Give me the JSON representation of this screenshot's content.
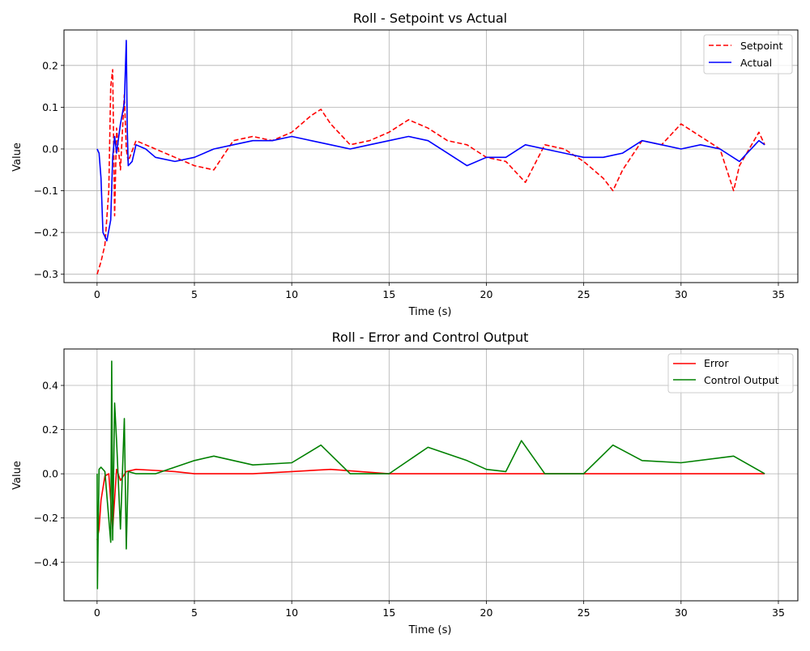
{
  "chart_data": [
    {
      "type": "line",
      "title": "Roll - Setpoint vs Actual",
      "xlabel": "Time (s)",
      "ylabel": "Value",
      "xlim": [
        -1.7,
        36.0
      ],
      "ylim": [
        -0.32,
        0.285
      ],
      "xticks": [
        0,
        5,
        10,
        15,
        20,
        25,
        30,
        35
      ],
      "yticks": [
        -0.3,
        -0.2,
        -0.1,
        0.0,
        0.1,
        0.2
      ],
      "ytick_labels": [
        "−0.3",
        "−0.2",
        "−0.1",
        "0.0",
        "0.1",
        "0.2"
      ],
      "grid": true,
      "legend_position": "top-right",
      "series": [
        {
          "name": "Setpoint",
          "color": "#ff0000",
          "style": "dashed",
          "x": [
            0,
            0.2,
            0.4,
            0.6,
            0.7,
            0.8,
            0.9,
            1.0,
            1.2,
            1.4,
            1.5,
            1.6,
            2.0,
            3.0,
            4.0,
            5.0,
            6.0,
            7.0,
            8.0,
            9.0,
            10.0,
            11.0,
            11.5,
            12.0,
            13.0,
            14.0,
            15.0,
            16.0,
            17.0,
            18.0,
            19.0,
            20.0,
            21.0,
            22.0,
            23.0,
            24.0,
            25.0,
            26.0,
            26.5,
            27.0,
            28.0,
            29.0,
            30.0,
            31.0,
            32.0,
            32.7,
            33.0,
            34.0,
            34.3
          ],
          "values": [
            -0.3,
            -0.27,
            -0.23,
            -0.1,
            0.15,
            0.19,
            -0.16,
            0.05,
            -0.05,
            0.13,
            0.0,
            -0.03,
            0.02,
            0.0,
            -0.02,
            -0.04,
            -0.05,
            0.02,
            0.03,
            0.02,
            0.04,
            0.08,
            0.095,
            0.06,
            0.01,
            0.02,
            0.04,
            0.07,
            0.05,
            0.02,
            0.01,
            -0.02,
            -0.03,
            -0.08,
            0.01,
            0.0,
            -0.03,
            -0.07,
            -0.1,
            -0.05,
            0.02,
            0.01,
            0.06,
            0.03,
            0.0,
            -0.1,
            -0.04,
            0.04,
            0.01
          ]
        },
        {
          "name": "Actual",
          "color": "#0000ff",
          "style": "solid",
          "x": [
            0,
            0.1,
            0.2,
            0.3,
            0.5,
            0.7,
            0.8,
            0.9,
            1.0,
            1.2,
            1.4,
            1.5,
            1.55,
            1.6,
            1.8,
            2.0,
            2.5,
            3.0,
            4.0,
            5.0,
            6.0,
            7.0,
            8.0,
            9.0,
            10.0,
            11.0,
            12.0,
            13.0,
            14.0,
            15.0,
            16.0,
            17.0,
            18.0,
            19.0,
            20.0,
            21.0,
            22.0,
            23.0,
            24.0,
            25.0,
            26.0,
            27.0,
            28.0,
            29.0,
            30.0,
            31.0,
            32.0,
            33.0,
            34.0,
            34.3
          ],
          "values": [
            0,
            -0.01,
            -0.07,
            -0.2,
            -0.22,
            -0.17,
            -0.02,
            0.03,
            -0.01,
            0.06,
            0.11,
            0.26,
            0.05,
            -0.04,
            -0.03,
            0.01,
            0.0,
            -0.02,
            -0.03,
            -0.02,
            0.0,
            0.01,
            0.02,
            0.02,
            0.03,
            0.02,
            0.01,
            0.0,
            0.01,
            0.02,
            0.03,
            0.02,
            -0.01,
            -0.04,
            -0.02,
            -0.02,
            0.01,
            0.0,
            -0.01,
            -0.02,
            -0.02,
            -0.01,
            0.02,
            0.01,
            0.0,
            0.01,
            0.0,
            -0.03,
            0.02,
            0.01
          ]
        }
      ]
    },
    {
      "type": "line",
      "title": "Roll - Error and Control Output",
      "xlabel": "Time (s)",
      "ylabel": "Value",
      "xlim": [
        -1.7,
        36.0
      ],
      "ylim": [
        -0.575,
        0.565
      ],
      "xticks": [
        0,
        5,
        10,
        15,
        20,
        25,
        30,
        35
      ],
      "yticks": [
        -0.4,
        -0.2,
        0.0,
        0.2,
        0.4
      ],
      "ytick_labels": [
        "−0.4",
        "−0.2",
        "0.0",
        "0.2",
        "0.4"
      ],
      "grid": true,
      "legend_position": "top-right",
      "series": [
        {
          "name": "Error",
          "color": "#ff0000",
          "style": "solid",
          "x": [
            0,
            0.1,
            0.2,
            0.4,
            0.6,
            0.8,
            1.0,
            1.2,
            1.5,
            2.0,
            3.0,
            4.0,
            5.0,
            8.0,
            10.0,
            12.0,
            15.0,
            20.0,
            25.0,
            30.0,
            34.3
          ],
          "values": [
            -0.3,
            -0.25,
            -0.12,
            -0.01,
            0.0,
            -0.25,
            0.02,
            -0.03,
            0.01,
            0.02,
            0.015,
            0.01,
            0.0,
            0.0,
            0.01,
            0.02,
            0.0,
            0.0,
            0.0,
            0.0,
            0.0
          ]
        },
        {
          "name": "Control Output",
          "color": "#008000",
          "style": "solid",
          "x": [
            0,
            0.02,
            0.05,
            0.1,
            0.2,
            0.4,
            0.7,
            0.75,
            0.8,
            0.9,
            1.0,
            1.2,
            1.4,
            1.5,
            1.6,
            2.0,
            3.0,
            5.0,
            6.0,
            8.0,
            10.0,
            11.5,
            13.0,
            15.0,
            17.0,
            19.0,
            20.0,
            21.0,
            21.8,
            23.0,
            25.0,
            26.5,
            28.0,
            30.0,
            32.7,
            34.3
          ],
          "values": [
            0.0,
            -0.52,
            -0.3,
            0.02,
            0.03,
            0.01,
            -0.31,
            0.51,
            -0.3,
            0.32,
            0.15,
            -0.25,
            0.25,
            -0.34,
            0.01,
            0.0,
            0.0,
            0.06,
            0.08,
            0.04,
            0.05,
            0.13,
            0.0,
            0.0,
            0.12,
            0.06,
            0.02,
            0.01,
            0.15,
            0.0,
            0.0,
            0.13,
            0.06,
            0.05,
            0.08,
            0.0
          ]
        }
      ]
    }
  ]
}
